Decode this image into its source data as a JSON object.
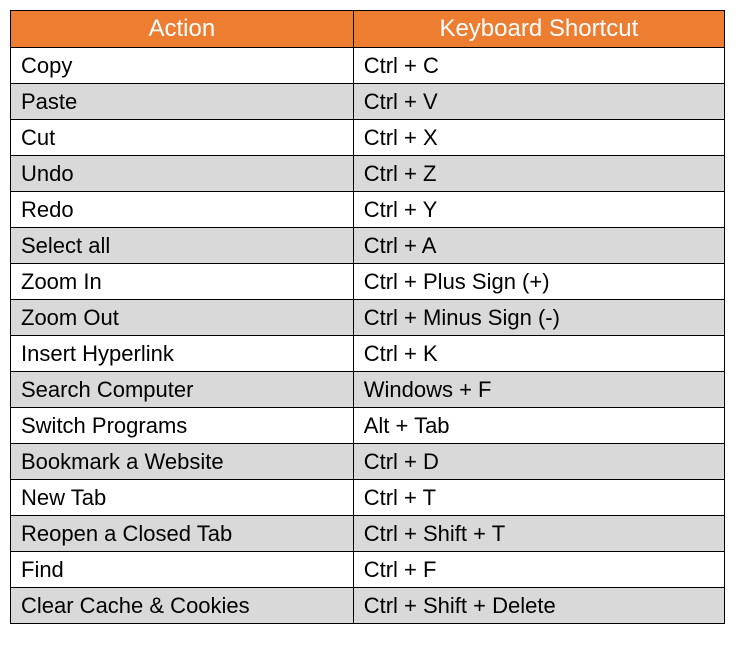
{
  "table": {
    "type": "table",
    "header_bg": "#ed7d31",
    "header_text_color": "#ffffff",
    "row_odd_bg": "#ffffff",
    "row_even_bg": "#d9d9d9",
    "border_color": "#000000",
    "cell_text_color": "#000000",
    "header_fontsize": 24,
    "cell_fontsize": 22,
    "columns": [
      "Action",
      "Keyboard Shortcut"
    ],
    "col_widths_pct": [
      48,
      52
    ],
    "rows": [
      [
        "Copy",
        "Ctrl + C"
      ],
      [
        "Paste",
        "Ctrl + V"
      ],
      [
        "Cut",
        "Ctrl + X"
      ],
      [
        "Undo",
        "Ctrl + Z"
      ],
      [
        "Redo",
        "Ctrl + Y"
      ],
      [
        "Select all",
        "Ctrl + A"
      ],
      [
        "Zoom In",
        "Ctrl + Plus Sign (+)"
      ],
      [
        "Zoom Out",
        "Ctrl + Minus Sign (-)"
      ],
      [
        "Insert Hyperlink",
        "Ctrl + K"
      ],
      [
        "Search Computer",
        "Windows + F"
      ],
      [
        "Switch Programs",
        "Alt + Tab"
      ],
      [
        "Bookmark a Website",
        "Ctrl + D"
      ],
      [
        "New Tab",
        "Ctrl + T"
      ],
      [
        "Reopen a Closed Tab",
        "Ctrl + Shift + T"
      ],
      [
        "Find",
        "Ctrl + F"
      ],
      [
        "Clear Cache & Cookies",
        "Ctrl + Shift + Delete"
      ]
    ]
  }
}
